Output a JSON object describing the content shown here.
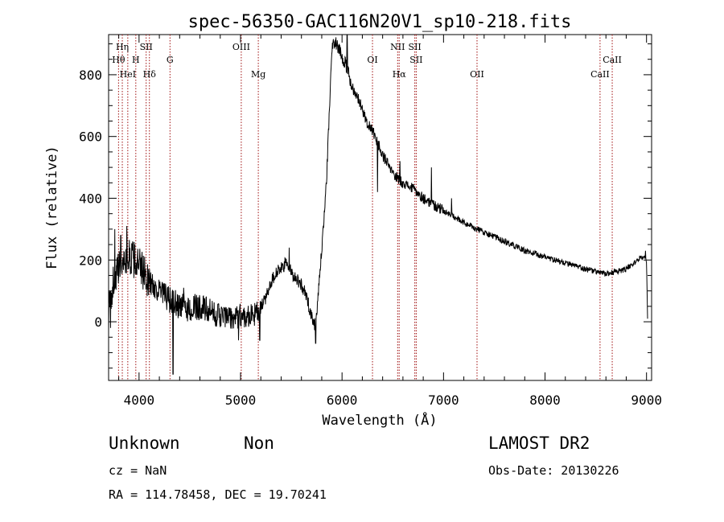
{
  "chart_data": {
    "type": "line",
    "title": "spec-56350-GAC116N20V1_sp10-218.fits",
    "xlabel": "Wavelength (Å)",
    "ylabel": "Flux (relative)",
    "xlim": [
      3700,
      9050
    ],
    "ylim": [
      -190,
      930
    ],
    "xticks": [
      4000,
      5000,
      6000,
      7000,
      8000,
      9000
    ],
    "xtick_labels": [
      "4000",
      "5000",
      "6000",
      "7000",
      "8000",
      "9000"
    ],
    "yticks": [
      0,
      200,
      400,
      600,
      800
    ],
    "ytick_labels": [
      "0",
      "200",
      "400",
      "600",
      "800"
    ],
    "grid": false,
    "line_color": "#000000",
    "marker_color": "#a01010",
    "spectrum_anchors": [
      [
        3700,
        30
      ],
      [
        3740,
        120
      ],
      [
        3800,
        170
      ],
      [
        3850,
        200
      ],
      [
        3900,
        210
      ],
      [
        3950,
        200
      ],
      [
        4000,
        180
      ],
      [
        4050,
        160
      ],
      [
        4100,
        130
      ],
      [
        4200,
        100
      ],
      [
        4300,
        70
      ],
      [
        4400,
        50
      ],
      [
        4500,
        40
      ],
      [
        4600,
        50
      ],
      [
        4700,
        30
      ],
      [
        4800,
        20
      ],
      [
        4900,
        10
      ],
      [
        5000,
        20
      ],
      [
        5100,
        20
      ],
      [
        5180,
        30
      ],
      [
        5250,
        80
      ],
      [
        5300,
        130
      ],
      [
        5350,
        160
      ],
      [
        5400,
        170
      ],
      [
        5450,
        190
      ],
      [
        5500,
        160
      ],
      [
        5550,
        140
      ],
      [
        5600,
        120
      ],
      [
        5650,
        80
      ],
      [
        5700,
        20
      ],
      [
        5730,
        -10
      ],
      [
        5760,
        60
      ],
      [
        5800,
        230
      ],
      [
        5850,
        480
      ],
      [
        5880,
        720
      ],
      [
        5900,
        880
      ],
      [
        5920,
        910
      ],
      [
        5950,
        900
      ],
      [
        6000,
        860
      ],
      [
        6050,
        820
      ],
      [
        6100,
        760
      ],
      [
        6150,
        730
      ],
      [
        6200,
        690
      ],
      [
        6250,
        640
      ],
      [
        6300,
        620
      ],
      [
        6350,
        580
      ],
      [
        6400,
        540
      ],
      [
        6450,
        510
      ],
      [
        6500,
        480
      ],
      [
        6550,
        465
      ],
      [
        6600,
        450
      ],
      [
        6700,
        430
      ],
      [
        6800,
        400
      ],
      [
        6900,
        380
      ],
      [
        7000,
        360
      ],
      [
        7200,
        320
      ],
      [
        7400,
        290
      ],
      [
        7600,
        260
      ],
      [
        7800,
        230
      ],
      [
        8000,
        210
      ],
      [
        8200,
        190
      ],
      [
        8400,
        170
      ],
      [
        8600,
        155
      ],
      [
        8800,
        170
      ],
      [
        8950,
        210
      ],
      [
        9000,
        200
      ],
      [
        9010,
        10
      ]
    ],
    "spikes": [
      [
        3720,
        -20
      ],
      [
        3760,
        300
      ],
      [
        3820,
        280
      ],
      [
        3880,
        310
      ],
      [
        3960,
        250
      ],
      [
        4335,
        -170
      ],
      [
        4440,
        110
      ],
      [
        4980,
        -60
      ],
      [
        5190,
        -60
      ],
      [
        5480,
        240
      ],
      [
        5740,
        -70
      ],
      [
        6050,
        930
      ],
      [
        6350,
        420
      ],
      [
        6570,
        520
      ],
      [
        6880,
        500
      ],
      [
        7080,
        400
      ],
      [
        8990,
        230
      ]
    ],
    "line_markers": [
      {
        "label": "Hη",
        "wavelength": 3835,
        "row": 0
      },
      {
        "label": "Hθ",
        "wavelength": 3798,
        "row": 1
      },
      {
        "label": "HeI",
        "wavelength": 3889,
        "row": 2
      },
      {
        "label": "SII",
        "wavelength": 4070,
        "row": 0
      },
      {
        "label": "H",
        "wavelength": 3968,
        "row": 1
      },
      {
        "label": "Hδ",
        "wavelength": 4102,
        "row": 2
      },
      {
        "label": "G",
        "wavelength": 4305,
        "row": 1
      },
      {
        "label": "OIII",
        "wavelength": 5007,
        "row": 0
      },
      {
        "label": "Mg",
        "wavelength": 5175,
        "row": 2
      },
      {
        "label": "OI",
        "wavelength": 6300,
        "row": 1
      },
      {
        "label": "NII",
        "wavelength": 6548,
        "row": 0
      },
      {
        "label": "Hα",
        "wavelength": 6563,
        "row": 2
      },
      {
        "label": "SII",
        "wavelength": 6717,
        "row": 0
      },
      {
        "label": "SII",
        "wavelength": 6731,
        "row": 1
      },
      {
        "label": "OII",
        "wavelength": 7330,
        "row": 2
      },
      {
        "label": "CaII",
        "wavelength": 8542,
        "row": 2
      },
      {
        "label": "CaII",
        "wavelength": 8662,
        "row": 1
      }
    ]
  },
  "info": {
    "object_class": "Unknown",
    "subclass": "Non",
    "survey": "LAMOST DR2",
    "redshift": "cz = NaN",
    "obs_date": "Obs-Date: 20130226",
    "coords": "RA = 114.78458, DEC =  19.70241"
  }
}
